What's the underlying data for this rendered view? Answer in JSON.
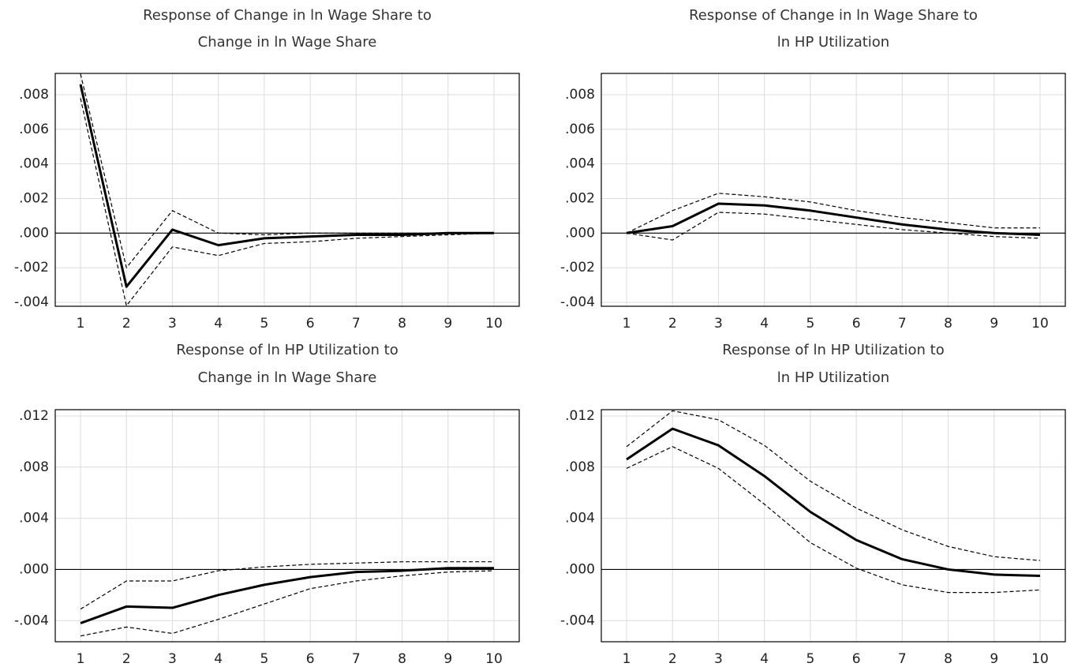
{
  "chart_data": [
    {
      "type": "line",
      "title": [
        "Response of Change in ln Wage Share to",
        "Change in ln Wage Share"
      ],
      "x": [
        1,
        2,
        3,
        4,
        5,
        6,
        7,
        8,
        9,
        10
      ],
      "xlim": [
        0.45,
        10.55
      ],
      "xticks": [
        1,
        2,
        3,
        4,
        5,
        6,
        7,
        8,
        9,
        10
      ],
      "ylim": [
        -0.00423,
        0.00923
      ],
      "yticks": [
        {
          "value": 0.008,
          "label": ".008"
        },
        {
          "value": 0.006,
          "label": ".006"
        },
        {
          "value": 0.004,
          "label": ".004"
        },
        {
          "value": 0.002,
          "label": ".002"
        },
        {
          "value": 0,
          "label": ".000"
        },
        {
          "value": -0.002,
          "label": "-.002"
        },
        {
          "value": -0.004,
          "label": "-.004"
        }
      ],
      "grid": true,
      "zero_line": true,
      "series": [
        {
          "color": "#000000",
          "line_style": "solid",
          "values": [
            0.0086,
            -0.0031,
            0.0002,
            -0.0007,
            -0.0003,
            -0.0002,
            -0.0001,
            -0.0001,
            0.0,
            0.0
          ]
        },
        {
          "color": "#000000",
          "line_style": "dashed",
          "values": [
            0.0092,
            -0.002,
            0.0013,
            0.0,
            -0.0001,
            0.0,
            0.0,
            0.0,
            0.0,
            0.0
          ]
        },
        {
          "color": "#000000",
          "line_style": "dashed",
          "values": [
            0.0078,
            -0.0042,
            -0.0008,
            -0.0013,
            -0.0006,
            -0.0005,
            -0.0003,
            -0.0002,
            -0.0001,
            0.0
          ]
        }
      ]
    },
    {
      "type": "line",
      "title": [
        "Response of Change in ln Wage Share to",
        "ln HP Utilization"
      ],
      "x": [
        1,
        2,
        3,
        4,
        5,
        6,
        7,
        8,
        9,
        10
      ],
      "xlim": [
        0.45,
        10.55
      ],
      "xticks": [
        1,
        2,
        3,
        4,
        5,
        6,
        7,
        8,
        9,
        10
      ],
      "ylim": [
        -0.00423,
        0.00923
      ],
      "yticks": [
        {
          "value": 0.008,
          "label": ".008"
        },
        {
          "value": 0.006,
          "label": ".006"
        },
        {
          "value": 0.004,
          "label": ".004"
        },
        {
          "value": 0.002,
          "label": ".002"
        },
        {
          "value": 0,
          "label": ".000"
        },
        {
          "value": -0.002,
          "label": "-.002"
        },
        {
          "value": -0.004,
          "label": "-.004"
        }
      ],
      "grid": true,
      "zero_line": true,
      "series": [
        {
          "color": "#000000",
          "line_style": "solid",
          "values": [
            0.0,
            0.0004,
            0.0017,
            0.0016,
            0.0013,
            0.0009,
            0.0005,
            0.0002,
            0.0,
            -0.0001
          ]
        },
        {
          "color": "#000000",
          "line_style": "dashed",
          "values": [
            0.0,
            0.0013,
            0.0023,
            0.0021,
            0.0018,
            0.0013,
            0.0009,
            0.0006,
            0.0003,
            0.0003
          ]
        },
        {
          "color": "#000000",
          "line_style": "dashed",
          "values": [
            0.0,
            -0.0004,
            0.0012,
            0.0011,
            0.0008,
            0.0005,
            0.0002,
            0.0,
            -0.0002,
            -0.0003
          ]
        }
      ]
    },
    {
      "type": "line",
      "title": [
        "Response of ln HP Utilization to",
        "Change in ln Wage Share"
      ],
      "x": [
        1,
        2,
        3,
        4,
        5,
        6,
        7,
        8,
        9,
        10
      ],
      "xlim": [
        0.45,
        10.55
      ],
      "xticks": [
        1,
        2,
        3,
        4,
        5,
        6,
        7,
        8,
        9,
        10
      ],
      "ylim": [
        -0.00565,
        0.01249
      ],
      "yticks": [
        {
          "value": 0.012,
          "label": ".012"
        },
        {
          "value": 0.008,
          "label": ".008"
        },
        {
          "value": 0.004,
          "label": ".004"
        },
        {
          "value": 0,
          "label": ".000"
        },
        {
          "value": -0.004,
          "label": "-.004"
        }
      ],
      "grid": true,
      "zero_line": true,
      "series": [
        {
          "color": "#000000",
          "line_style": "solid",
          "values": [
            -0.0042,
            -0.0029,
            -0.003,
            -0.002,
            -0.0012,
            -0.0006,
            -0.0002,
            -0.0001,
            0.0001,
            0.0001
          ]
        },
        {
          "color": "#000000",
          "line_style": "dashed",
          "values": [
            -0.0031,
            -0.0009,
            -0.0009,
            -0.0001,
            0.0002,
            0.0004,
            0.0005,
            0.0006,
            0.0006,
            0.0006
          ]
        },
        {
          "color": "#000000",
          "line_style": "dashed",
          "values": [
            -0.0052,
            -0.0045,
            -0.005,
            -0.0039,
            -0.0027,
            -0.0015,
            -0.0009,
            -0.0005,
            -0.0002,
            -0.0001
          ]
        }
      ]
    },
    {
      "type": "line",
      "title": [
        "Response of ln HP Utilization to",
        "ln HP Utilization"
      ],
      "x": [
        1,
        2,
        3,
        4,
        5,
        6,
        7,
        8,
        9,
        10
      ],
      "xlim": [
        0.45,
        10.55
      ],
      "xticks": [
        1,
        2,
        3,
        4,
        5,
        6,
        7,
        8,
        9,
        10
      ],
      "ylim": [
        -0.00565,
        0.01249
      ],
      "yticks": [
        {
          "value": 0.012,
          "label": ".012"
        },
        {
          "value": 0.008,
          "label": ".008"
        },
        {
          "value": 0.004,
          "label": ".004"
        },
        {
          "value": 0,
          "label": ".000"
        },
        {
          "value": -0.004,
          "label": "-.004"
        }
      ],
      "grid": true,
      "zero_line": true,
      "series": [
        {
          "color": "#000000",
          "line_style": "solid",
          "values": [
            0.0086,
            0.011,
            0.0097,
            0.0073,
            0.0045,
            0.0023,
            0.0008,
            0.0,
            -0.0004,
            -0.0005
          ]
        },
        {
          "color": "#000000",
          "line_style": "dashed",
          "values": [
            0.0096,
            0.0124,
            0.0117,
            0.0097,
            0.0069,
            0.0048,
            0.0031,
            0.0018,
            0.001,
            0.0007
          ]
        },
        {
          "color": "#000000",
          "line_style": "dashed",
          "values": [
            0.0079,
            0.0096,
            0.0079,
            0.0051,
            0.0021,
            0.0001,
            -0.0012,
            -0.0018,
            -0.0018,
            -0.0016
          ]
        }
      ]
    }
  ]
}
